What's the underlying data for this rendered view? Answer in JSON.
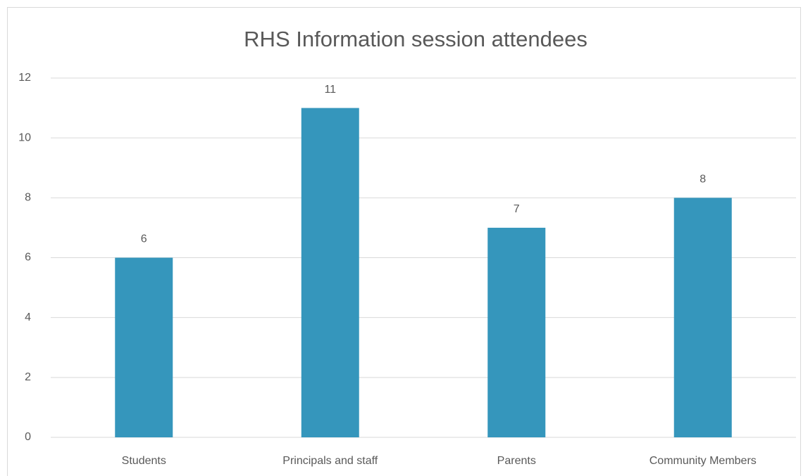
{
  "chart_data": {
    "type": "bar",
    "title": "RHS Information session attendees",
    "categories": [
      "Students",
      "Principals and staff",
      "Parents",
      "Community Members"
    ],
    "values": [
      6,
      11,
      7,
      8
    ],
    "color": "#3596bc",
    "ylim": [
      0,
      12
    ],
    "yticks": [
      0,
      2,
      4,
      6,
      8,
      10,
      12
    ],
    "grid": true
  }
}
